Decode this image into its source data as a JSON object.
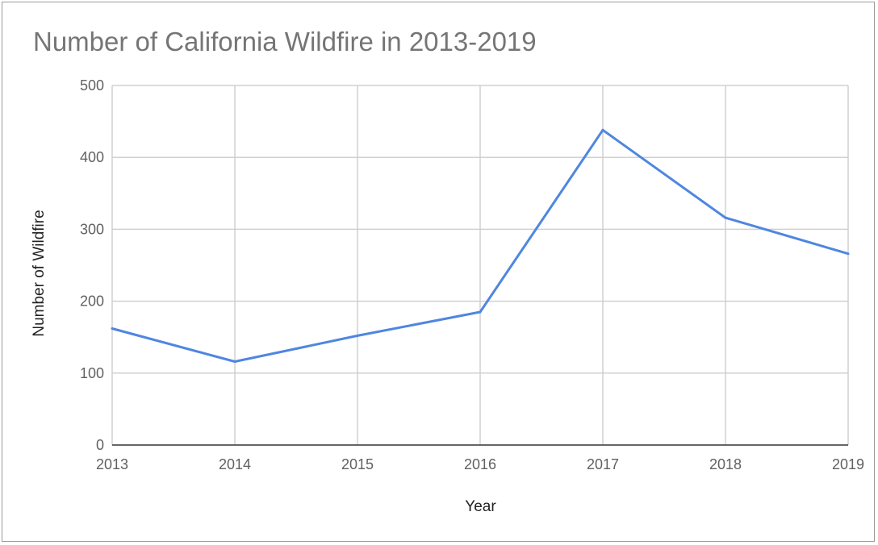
{
  "chart_data": {
    "type": "line",
    "title": "Number of California Wildfire in 2013-2019",
    "xlabel": "Year",
    "ylabel": "Number of Wildfire",
    "categories": [
      "2013",
      "2014",
      "2015",
      "2016",
      "2017",
      "2018",
      "2019"
    ],
    "series": [
      {
        "values": [
          162,
          116,
          152,
          185,
          438,
          316,
          266
        ],
        "color": "#4f86e0"
      }
    ],
    "ylim": [
      0,
      500
    ],
    "yticks": [
      0,
      100,
      200,
      300,
      400,
      500
    ],
    "grid": true,
    "legend": "none"
  }
}
